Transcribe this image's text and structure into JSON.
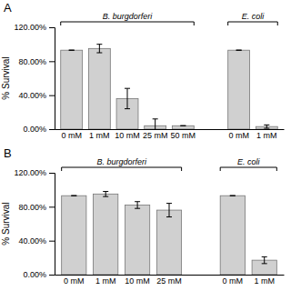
{
  "chart_data": [
    {
      "type": "bar",
      "title": "A",
      "y_label": "% Survival",
      "categories": [
        "0 mM",
        "1 mM",
        "10 mM",
        "25 mM",
        "50 mM",
        "0 mM",
        "1 mM"
      ],
      "series": [
        {
          "name": "B. burgdorferi",
          "color": "#d0d0d0",
          "values": [
            93,
            95,
            36,
            4,
            4,
            null,
            null
          ],
          "errors": [
            0,
            5,
            12,
            8,
            0,
            null,
            null
          ]
        },
        {
          "name": "E. coli",
          "color": "#d0d0d0",
          "values": [
            null,
            null,
            null,
            null,
            null,
            93,
            3
          ],
          "errors": [
            null,
            null,
            null,
            null,
            null,
            0,
            2
          ]
        }
      ],
      "ylim": [
        0,
        120
      ],
      "yticks": [
        {
          "value": 0,
          "label": "0.00%"
        },
        {
          "value": 40,
          "label": "40.00%"
        },
        {
          "value": 80,
          "label": "80.00%"
        },
        {
          "value": 120,
          "label": "120.00%"
        }
      ]
    },
    {
      "type": "bar",
      "title": "B",
      "y_label": "% Survival",
      "categories": [
        "0 mM",
        "1 mM",
        "10 mM",
        "25 mM",
        "0 mM",
        "1 mM"
      ],
      "series": [
        {
          "name": "B. burgdorferi",
          "color": "#d0d0d0",
          "values": [
            93,
            95,
            82,
            76,
            null,
            null
          ],
          "errors": [
            0,
            3,
            4,
            8,
            null,
            null
          ]
        },
        {
          "name": "E. coli",
          "color": "#d0d0d0",
          "values": [
            null,
            null,
            null,
            null,
            93,
            17
          ],
          "errors": [
            null,
            null,
            null,
            null,
            0,
            4
          ]
        }
      ],
      "ylim": [
        0,
        120
      ],
      "yticks": [
        {
          "value": 0,
          "label": "0.00%"
        },
        {
          "value": 40,
          "label": "40.00%"
        },
        {
          "value": 80,
          "label": "80.00%"
        },
        {
          "value": 120,
          "label": "120.00%"
        }
      ]
    }
  ]
}
